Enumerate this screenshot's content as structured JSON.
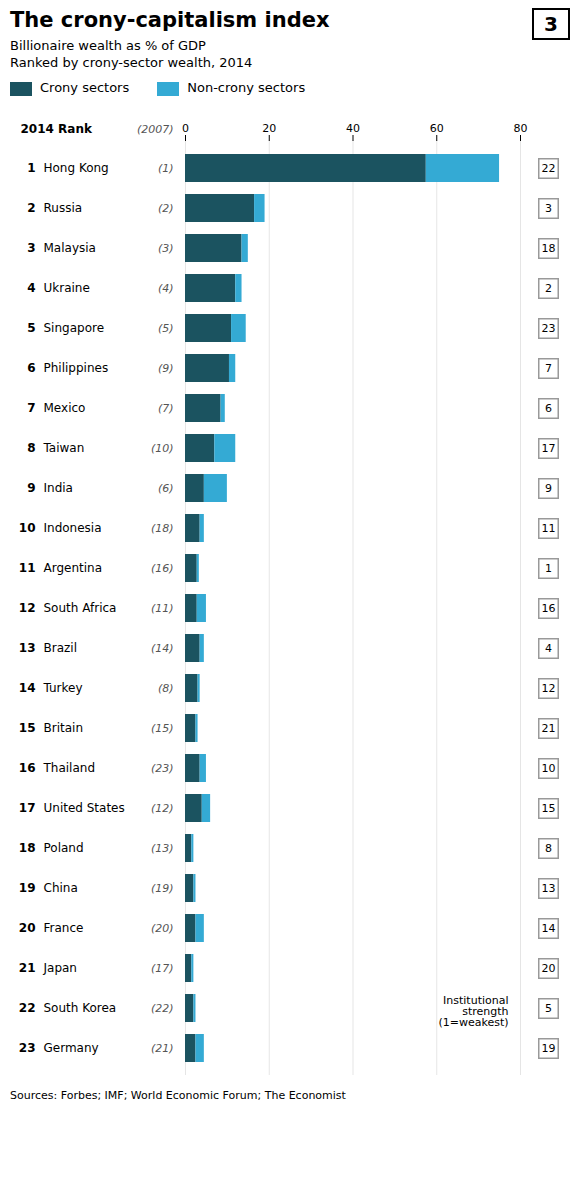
{
  "chart_data": {
    "type": "bar",
    "orientation": "horizontal",
    "stacked": true,
    "title": "The crony-capitalism index",
    "subtitle": [
      "Billionaire wealth as % of GDP",
      "Ranked by crony-sector wealth, 2014"
    ],
    "figure_number": "3",
    "rank_header": "2014 Rank",
    "rank_2007_header": "(2007)",
    "categories": [
      "Hong Kong",
      "Russia",
      "Malaysia",
      "Ukraine",
      "Singapore",
      "Philippines",
      "Mexico",
      "Taiwan",
      "India",
      "Indonesia",
      "Argentina",
      "South Africa",
      "Brazil",
      "Turkey",
      "Britain",
      "Thailand",
      "United States",
      "Poland",
      "China",
      "France",
      "Japan",
      "South Korea",
      "Germany"
    ],
    "rank": [
      1,
      2,
      3,
      4,
      5,
      6,
      7,
      8,
      9,
      10,
      11,
      12,
      13,
      14,
      15,
      16,
      17,
      18,
      19,
      20,
      21,
      22,
      23
    ],
    "rank_2007": [
      1,
      2,
      3,
      4,
      5,
      9,
      7,
      10,
      6,
      18,
      16,
      11,
      14,
      8,
      15,
      23,
      12,
      13,
      19,
      20,
      17,
      22,
      21
    ],
    "rank_2007_labels": [
      "(1)",
      "(2)",
      "(3)",
      "(4)",
      "(5)",
      "(9)",
      "(7)",
      "(10)",
      "(6)",
      "(18)",
      "(16)",
      "(11)",
      "(14)",
      "(8)",
      "(15)",
      "(23)",
      "(12)",
      "(13)",
      "(19)",
      "(20)",
      "(17)",
      "(22)",
      "(21)"
    ],
    "institutional_strength": [
      22,
      3,
      18,
      2,
      23,
      7,
      6,
      17,
      9,
      11,
      1,
      16,
      4,
      12,
      21,
      10,
      15,
      8,
      13,
      14,
      20,
      5,
      19
    ],
    "series": [
      {
        "name": "Crony sectors",
        "color": "#1b5360",
        "values": [
          57.5,
          16.5,
          13.5,
          12.0,
          11.0,
          10.5,
          8.5,
          7.0,
          4.5,
          3.5,
          2.8,
          2.8,
          3.5,
          3.0,
          2.5,
          3.5,
          4.0,
          1.5,
          2.0,
          2.5,
          1.5,
          2.0,
          2.5
        ]
      },
      {
        "name": "Non-crony sectors",
        "color": "#34aad4",
        "values": [
          17.5,
          2.5,
          1.5,
          1.5,
          3.5,
          1.5,
          1.0,
          5.0,
          5.5,
          1.0,
          0.5,
          2.2,
          1.0,
          0.5,
          0.5,
          1.5,
          2.0,
          0.5,
          0.5,
          2.0,
          0.5,
          0.5,
          2.0
        ]
      }
    ],
    "xlim": [
      0,
      80
    ],
    "xticks": [
      0,
      20,
      40,
      60,
      80
    ],
    "grid": true,
    "legend": "top",
    "annotations": [
      "Institutional\nstrength\n(1=weakest)"
    ],
    "source": "Sources: Forbes; IMF; World Economic Forum; The Economist"
  }
}
